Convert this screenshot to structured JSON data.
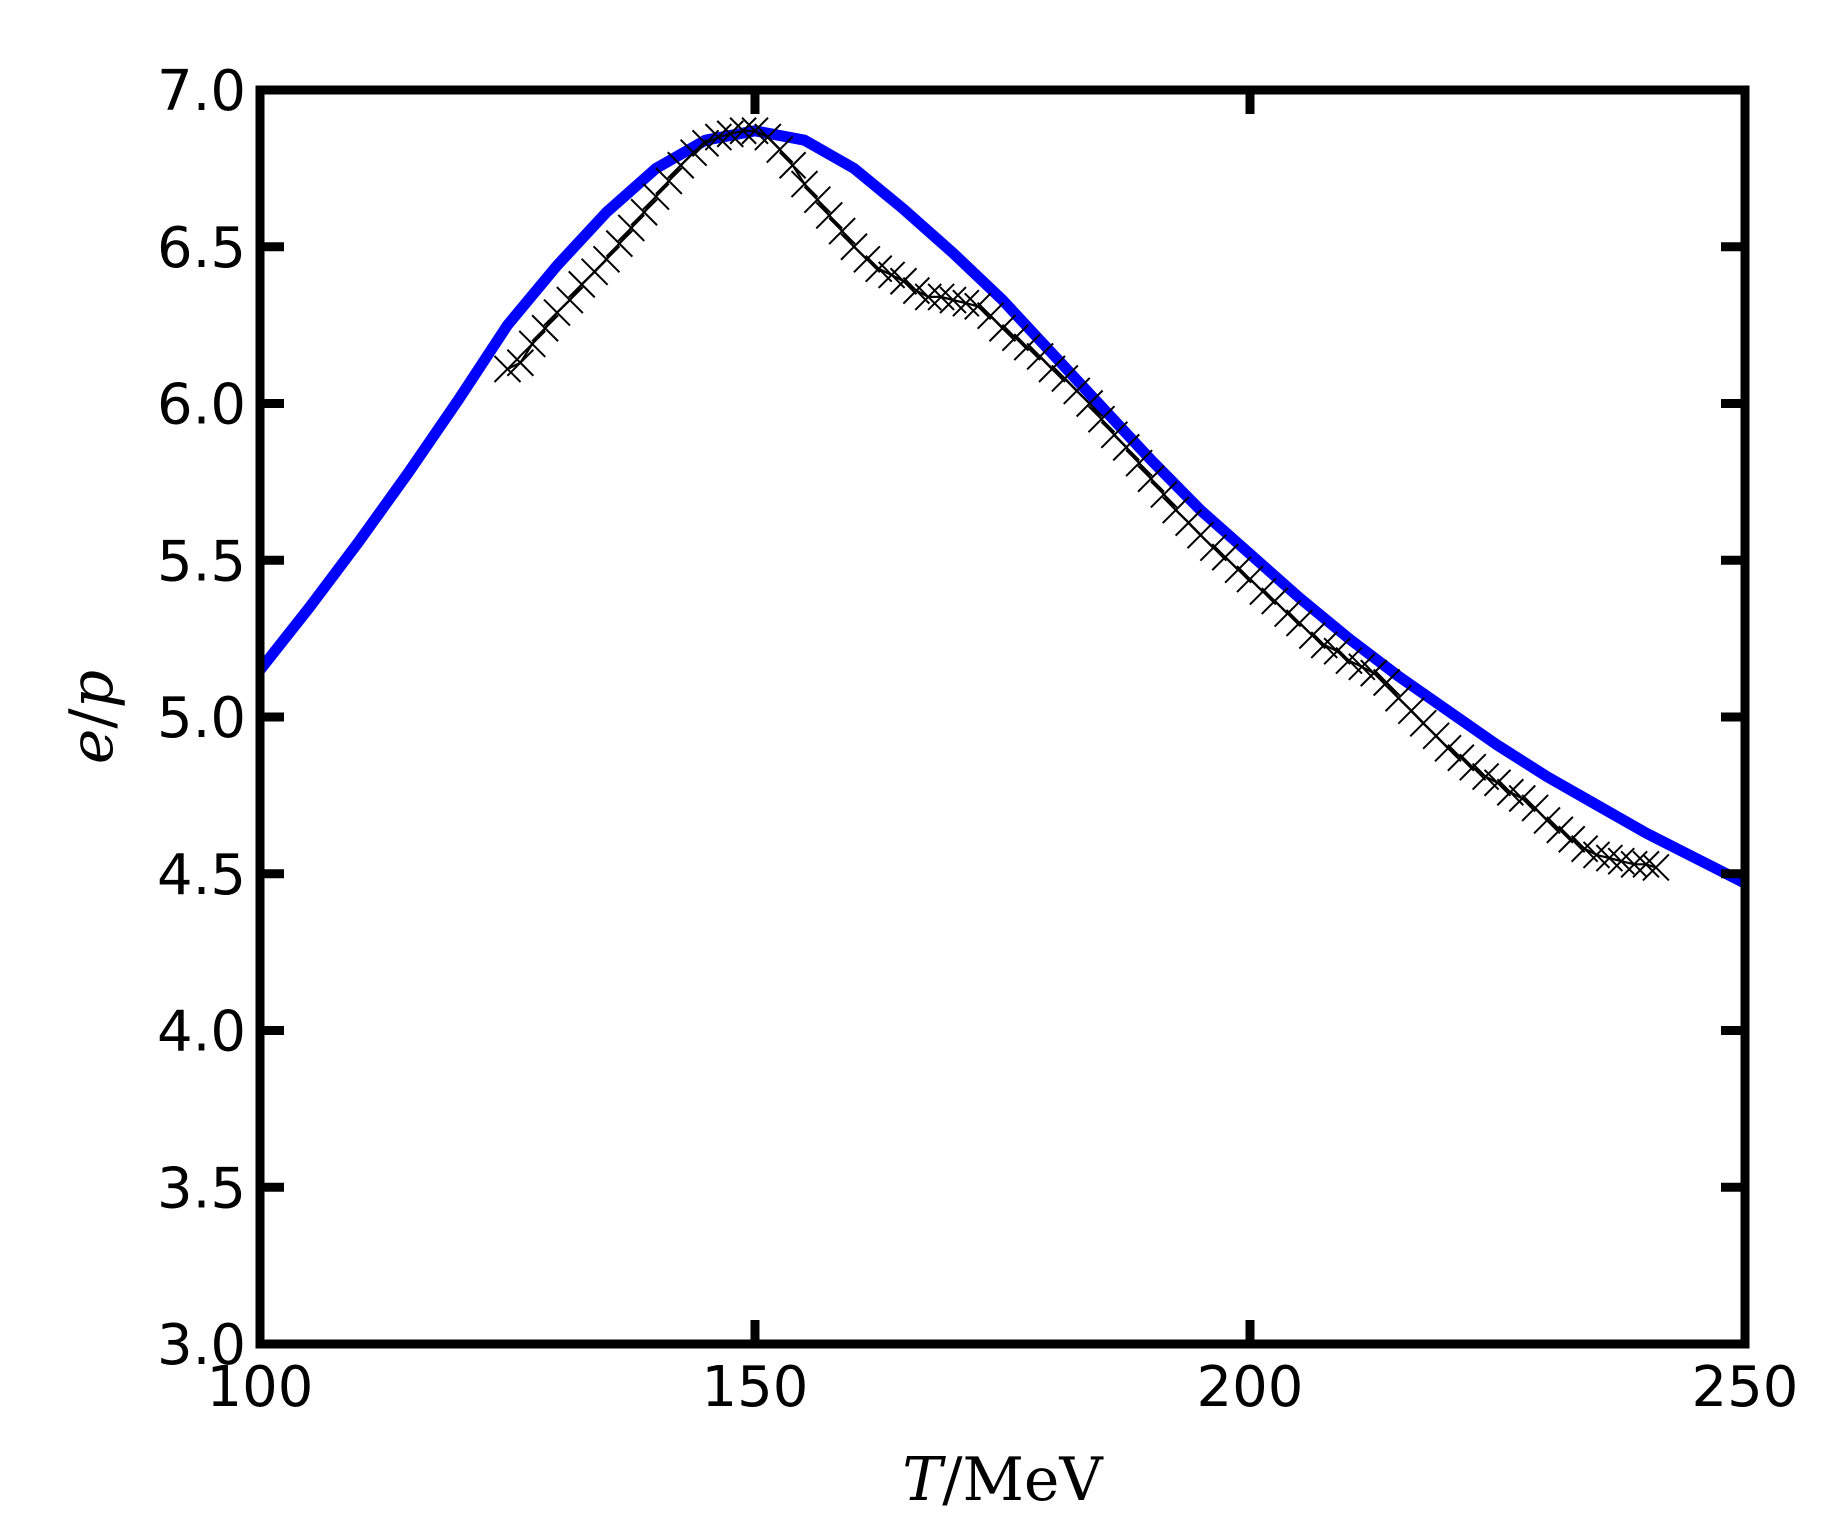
{
  "chart_data": {
    "type": "line",
    "title": "",
    "xlabel_var": "T",
    "xlabel_unit": "/MeV",
    "ylabel_num": "e",
    "ylabel_sep": "/",
    "ylabel_den": "p",
    "xlim": [
      100,
      250
    ],
    "ylim": [
      3.0,
      7.0
    ],
    "xticks": [
      "100",
      "150",
      "200",
      "250"
    ],
    "yticks": [
      "3.0",
      "3.5",
      "4.0",
      "4.5",
      "5.0",
      "5.5",
      "6.0",
      "6.5",
      "7.0"
    ],
    "grid": false,
    "legend": "none",
    "series": [
      {
        "style": "solid",
        "color": "#0000ff",
        "x": [
          100,
          105,
          110,
          115,
          120,
          125,
          130,
          135,
          140,
          145,
          150,
          155,
          160,
          165,
          170,
          175,
          180,
          185,
          190,
          195,
          200,
          205,
          210,
          215,
          220,
          225,
          230,
          235,
          240,
          245,
          250
        ],
        "y": [
          5.15,
          5.35,
          5.56,
          5.78,
          6.01,
          6.25,
          6.44,
          6.61,
          6.75,
          6.84,
          6.87,
          6.84,
          6.75,
          6.62,
          6.48,
          6.33,
          6.16,
          5.99,
          5.82,
          5.66,
          5.52,
          5.38,
          5.25,
          5.13,
          5.02,
          4.91,
          4.81,
          4.72,
          4.63,
          4.55,
          4.47
        ]
      },
      {
        "style": "markers-x",
        "color": "#000000",
        "x": [
          125.0,
          126.3,
          127.5,
          128.8,
          130.0,
          131.3,
          132.5,
          133.8,
          135.0,
          136.3,
          137.5,
          138.8,
          140.0,
          141.3,
          142.5,
          143.8,
          145.0,
          146.3,
          147.5,
          148.8,
          150.0,
          151.3,
          152.5,
          153.8,
          155.0,
          156.3,
          157.5,
          158.8,
          160.0,
          161.3,
          162.5,
          163.8,
          165.0,
          166.3,
          167.5,
          168.8,
          170.0,
          171.3,
          172.5,
          173.8,
          175.0,
          176.3,
          177.5,
          178.8,
          180.0,
          181.3,
          182.5,
          183.8,
          185.0,
          186.3,
          187.5,
          188.8,
          190.0,
          191.3,
          192.5,
          193.8,
          195.0,
          196.3,
          197.5,
          198.8,
          200.0,
          201.3,
          202.5,
          203.8,
          205.0,
          206.3,
          207.5,
          208.8,
          210.0,
          211.3,
          212.5,
          213.8,
          215.0,
          216.3,
          217.5,
          218.8,
          220.0,
          221.3,
          222.5,
          223.8,
          225.0,
          226.3,
          227.5,
          228.8,
          230.0,
          231.3,
          232.5,
          233.8,
          235.0,
          236.3,
          237.5,
          238.8,
          240.0,
          241.0
        ],
        "y": [
          6.11,
          6.13,
          6.19,
          6.24,
          6.29,
          6.33,
          6.38,
          6.42,
          6.46,
          6.51,
          6.56,
          6.61,
          6.66,
          6.71,
          6.76,
          6.8,
          6.83,
          6.85,
          6.86,
          6.87,
          6.87,
          6.85,
          6.81,
          6.76,
          6.7,
          6.65,
          6.6,
          6.55,
          6.5,
          6.46,
          6.43,
          6.41,
          6.39,
          6.36,
          6.34,
          6.34,
          6.33,
          6.32,
          6.31,
          6.28,
          6.24,
          6.21,
          6.18,
          6.15,
          6.11,
          6.08,
          6.04,
          6.0,
          5.95,
          5.9,
          5.86,
          5.81,
          5.76,
          5.71,
          5.66,
          5.62,
          5.58,
          5.54,
          5.51,
          5.47,
          5.44,
          5.4,
          5.37,
          5.33,
          5.3,
          5.26,
          5.23,
          5.21,
          5.18,
          5.16,
          5.14,
          5.11,
          5.06,
          5.02,
          4.98,
          4.94,
          4.9,
          4.87,
          4.84,
          4.81,
          4.79,
          4.76,
          4.74,
          4.71,
          4.67,
          4.64,
          4.61,
          4.58,
          4.56,
          4.55,
          4.54,
          4.53,
          4.53,
          4.52
        ]
      }
    ]
  }
}
